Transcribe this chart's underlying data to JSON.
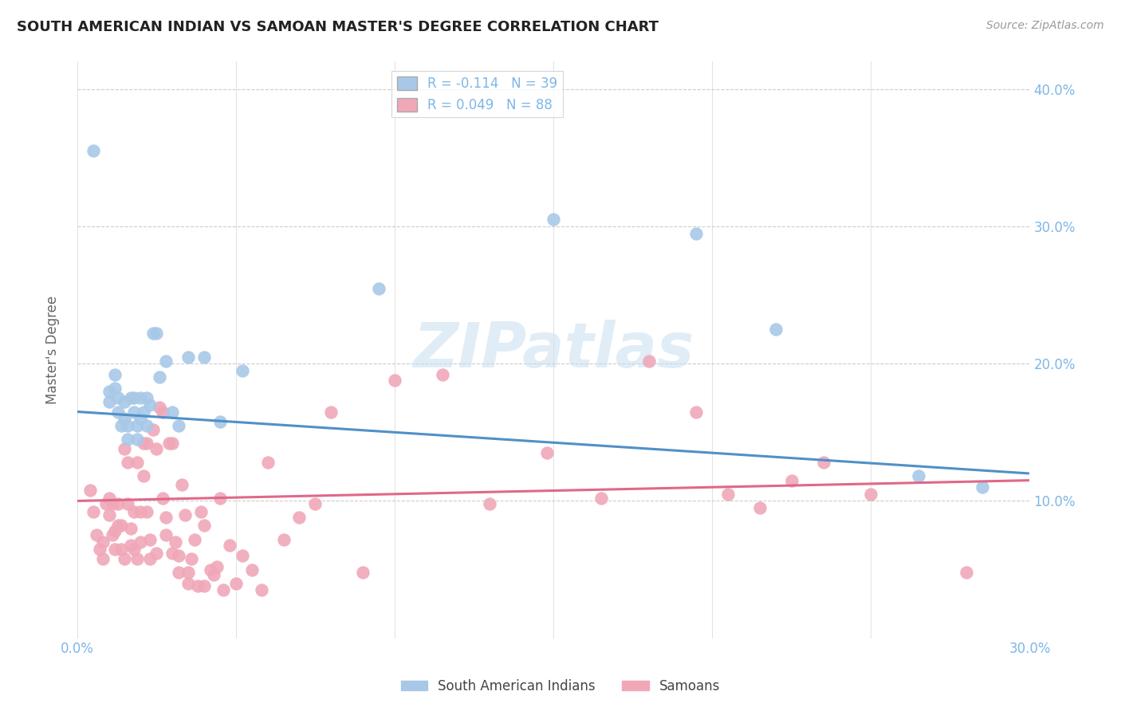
{
  "title": "SOUTH AMERICAN INDIAN VS SAMOAN MASTER'S DEGREE CORRELATION CHART",
  "source": "Source: ZipAtlas.com",
  "ylabel": "Master's Degree",
  "xlim": [
    0,
    0.3
  ],
  "ylim": [
    0,
    0.42
  ],
  "xticks": [
    0.0,
    0.05,
    0.1,
    0.15,
    0.2,
    0.25,
    0.3
  ],
  "xticklabels_show": [
    "0.0%",
    "",
    "",
    "",
    "",
    "",
    "30.0%"
  ],
  "yticks": [
    0.0,
    0.1,
    0.2,
    0.3,
    0.4
  ],
  "right_yticklabels": [
    "",
    "10.0%",
    "20.0%",
    "30.0%",
    "40.0%"
  ],
  "blue_color": "#A8C8E8",
  "pink_color": "#F0A8B8",
  "blue_line_color": "#5090C8",
  "pink_line_color": "#E06888",
  "axis_color": "#7EB6E8",
  "watermark_text": "ZIPatlas",
  "R_blue": -0.114,
  "N_blue": 39,
  "R_pink": 0.049,
  "N_pink": 88,
  "blue_scatter_x": [
    0.005,
    0.01,
    0.01,
    0.012,
    0.012,
    0.013,
    0.013,
    0.014,
    0.015,
    0.015,
    0.016,
    0.016,
    0.017,
    0.018,
    0.018,
    0.019,
    0.019,
    0.02,
    0.02,
    0.021,
    0.022,
    0.022,
    0.023,
    0.024,
    0.025,
    0.026,
    0.028,
    0.03,
    0.032,
    0.035,
    0.04,
    0.045,
    0.052,
    0.095,
    0.15,
    0.195,
    0.22,
    0.265,
    0.285
  ],
  "blue_scatter_y": [
    0.355,
    0.18,
    0.172,
    0.192,
    0.182,
    0.175,
    0.165,
    0.155,
    0.172,
    0.16,
    0.155,
    0.145,
    0.175,
    0.175,
    0.165,
    0.155,
    0.145,
    0.175,
    0.16,
    0.165,
    0.175,
    0.155,
    0.17,
    0.222,
    0.222,
    0.19,
    0.202,
    0.165,
    0.155,
    0.205,
    0.205,
    0.158,
    0.195,
    0.255,
    0.305,
    0.295,
    0.225,
    0.118,
    0.11
  ],
  "pink_scatter_x": [
    0.004,
    0.005,
    0.006,
    0.007,
    0.008,
    0.008,
    0.009,
    0.01,
    0.01,
    0.011,
    0.011,
    0.012,
    0.012,
    0.013,
    0.013,
    0.014,
    0.014,
    0.015,
    0.015,
    0.016,
    0.016,
    0.017,
    0.017,
    0.018,
    0.018,
    0.019,
    0.019,
    0.02,
    0.02,
    0.021,
    0.021,
    0.022,
    0.022,
    0.023,
    0.023,
    0.024,
    0.025,
    0.025,
    0.026,
    0.027,
    0.027,
    0.028,
    0.028,
    0.029,
    0.03,
    0.03,
    0.031,
    0.032,
    0.032,
    0.033,
    0.034,
    0.035,
    0.035,
    0.036,
    0.037,
    0.038,
    0.039,
    0.04,
    0.04,
    0.042,
    0.043,
    0.044,
    0.045,
    0.046,
    0.048,
    0.05,
    0.052,
    0.055,
    0.058,
    0.06,
    0.065,
    0.07,
    0.075,
    0.08,
    0.09,
    0.1,
    0.115,
    0.13,
    0.148,
    0.165,
    0.18,
    0.195,
    0.205,
    0.215,
    0.225,
    0.235,
    0.25,
    0.28
  ],
  "pink_scatter_y": [
    0.108,
    0.092,
    0.075,
    0.065,
    0.07,
    0.058,
    0.098,
    0.102,
    0.09,
    0.098,
    0.075,
    0.065,
    0.078,
    0.098,
    0.082,
    0.082,
    0.065,
    0.058,
    0.138,
    0.128,
    0.098,
    0.08,
    0.068,
    0.092,
    0.065,
    0.058,
    0.128,
    0.092,
    0.07,
    0.142,
    0.118,
    0.142,
    0.092,
    0.072,
    0.058,
    0.152,
    0.138,
    0.062,
    0.168,
    0.165,
    0.102,
    0.088,
    0.075,
    0.142,
    0.062,
    0.142,
    0.07,
    0.06,
    0.048,
    0.112,
    0.09,
    0.04,
    0.048,
    0.058,
    0.072,
    0.038,
    0.092,
    0.038,
    0.082,
    0.05,
    0.046,
    0.052,
    0.102,
    0.035,
    0.068,
    0.04,
    0.06,
    0.05,
    0.035,
    0.128,
    0.072,
    0.088,
    0.098,
    0.165,
    0.048,
    0.188,
    0.192,
    0.098,
    0.135,
    0.102,
    0.202,
    0.165,
    0.105,
    0.095,
    0.115,
    0.128,
    0.105,
    0.048
  ]
}
